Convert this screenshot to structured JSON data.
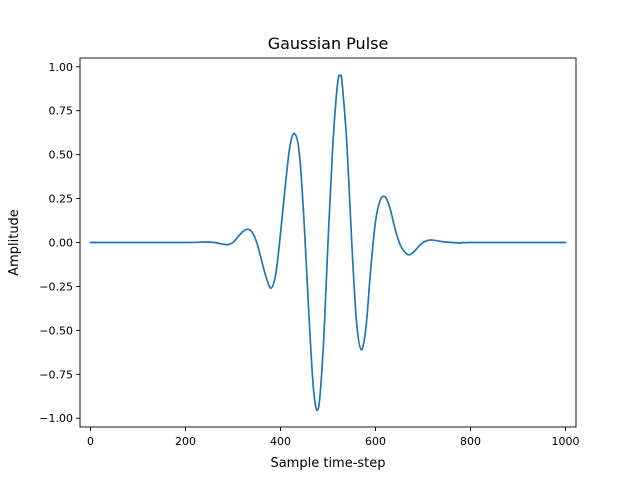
{
  "chart_data": {
    "type": "line",
    "title": "Gaussian Pulse",
    "xlabel": "Sample time-step",
    "ylabel": "Amplitude",
    "xlim": [
      -22,
      1022
    ],
    "ylim": [
      -1.05,
      1.05
    ],
    "xticks": [
      0,
      200,
      400,
      600,
      800,
      1000
    ],
    "yticks": [
      -1.0,
      -0.75,
      -0.5,
      -0.25,
      0.0,
      0.25,
      0.5,
      0.75,
      1.0
    ],
    "xtick_labels": [
      "0",
      "200",
      "400",
      "600",
      "800",
      "1000"
    ],
    "ytick_labels": [
      "−1.00",
      "−0.75",
      "−0.50",
      "−0.25",
      "0.00",
      "0.25",
      "0.50",
      "0.75",
      "1.00"
    ],
    "grid": false,
    "series": [
      {
        "color": "#1f77b4",
        "x": [
          0,
          200,
          240,
          260,
          280,
          290,
          300,
          310,
          320,
          330,
          340,
          350,
          360,
          370,
          380,
          390,
          400,
          410,
          420,
          430,
          440,
          450,
          460,
          470,
          480,
          490,
          500,
          510,
          520,
          526,
          530,
          540,
          550,
          560,
          570,
          580,
          590,
          600,
          610,
          620,
          630,
          640,
          650,
          660,
          670,
          680,
          690,
          700,
          710,
          720,
          740,
          760,
          780,
          800,
          1000
        ],
        "y": [
          0.0,
          0.0,
          0.003,
          0.0,
          -0.01,
          -0.012,
          0.0,
          0.03,
          0.06,
          0.075,
          0.06,
          0.0,
          -0.1,
          -0.2,
          -0.26,
          -0.18,
          0.05,
          0.32,
          0.55,
          0.62,
          0.5,
          0.1,
          -0.42,
          -0.85,
          -0.94,
          -0.6,
          0.0,
          0.55,
          0.9,
          0.95,
          0.9,
          0.55,
          0.0,
          -0.45,
          -0.61,
          -0.48,
          -0.15,
          0.12,
          0.24,
          0.26,
          0.2,
          0.09,
          0.0,
          -0.05,
          -0.07,
          -0.055,
          -0.025,
          0.0,
          0.012,
          0.014,
          0.005,
          0.0,
          -0.003,
          0.0,
          0.0
        ]
      }
    ]
  }
}
